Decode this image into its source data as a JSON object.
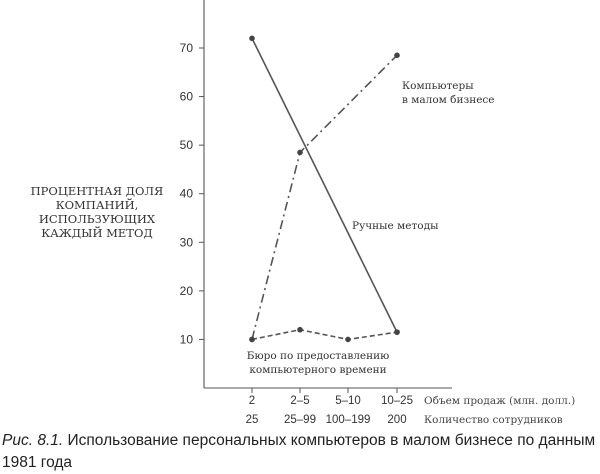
{
  "chart_data": {
    "type": "line",
    "ylabel": "ПРОЦЕНТНАЯ ДОЛЯ КОМПАНИЙ, ИСПОЛЬЗУЮЩИХ КАЖДЫЙ МЕТОД",
    "ylim": [
      0,
      80
    ],
    "yticks": [
      10,
      20,
      30,
      40,
      50,
      60,
      70
    ],
    "x_axis_rows": [
      {
        "label": "Объем продаж (млн. долл.)",
        "ticks": [
          "2",
          "2–5",
          "5–10",
          "10–25"
        ]
      },
      {
        "label": "Количество сотрудников",
        "ticks": [
          "25",
          "25–99",
          "100–199",
          "200"
        ]
      }
    ],
    "grid": false,
    "series": [
      {
        "name": "Компьютеры в малом бизнесе",
        "name_lines": [
          "Компьютеры",
          "в малом бизнесе"
        ],
        "style": "dash-dot",
        "values": [
          10,
          48.5,
          null,
          68.5
        ]
      },
      {
        "name": "Ручные методы",
        "name_lines": [
          "Ручные методы"
        ],
        "style": "solid",
        "values": [
          72,
          null,
          null,
          11.5
        ]
      },
      {
        "name": "Бюро по предоставлению компьютерного времени",
        "name_lines": [
          "Бюро по предоставлению",
          "компьютерного времени"
        ],
        "style": "dashed",
        "values": [
          10,
          12,
          10,
          11.5
        ]
      }
    ]
  },
  "caption": {
    "prefix": "Рис. 8.1.",
    "text": "Использование персональных компьютеров в малом бизнесе по данным 1981 года"
  }
}
